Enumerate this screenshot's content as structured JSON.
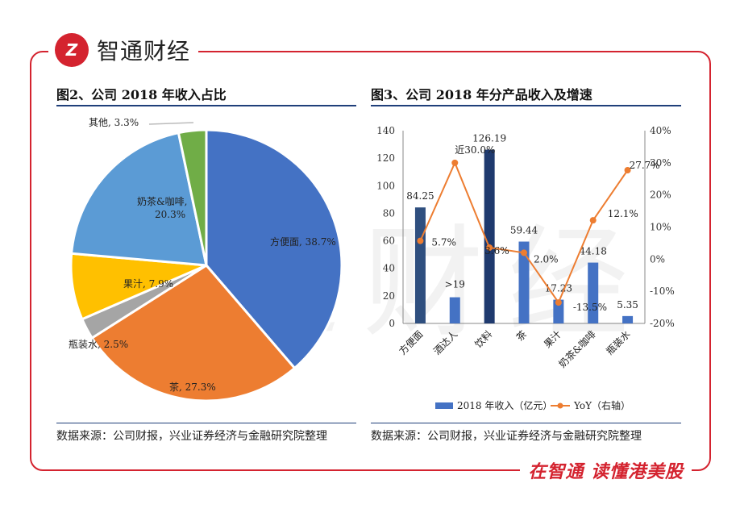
{
  "brand": {
    "logo_text": "智通财经",
    "slogan": "在智通 读懂港美股",
    "accent": "#d4232f",
    "watermark": "智通财经"
  },
  "left": {
    "title": "图2、公司 2018 年收入占比",
    "source": "数据来源：公司财报，兴业证券经济与金融研究院整理"
  },
  "right": {
    "title": "图3、公司 2018 年分产品收入及增速",
    "source": "数据来源：公司财报，兴业证券经济与金融研究院整理"
  },
  "chart_data": [
    {
      "type": "pie",
      "slices": [
        {
          "label": "方便面",
          "value": 38.7,
          "text": "方便面, 38.7%",
          "color": "#4472c4"
        },
        {
          "label": "茶",
          "value": 27.3,
          "text": "茶, 27.3%",
          "color": "#ed7d31"
        },
        {
          "label": "瓶装水",
          "value": 2.5,
          "text": "瓶装水, 2.5%",
          "color": "#a5a5a5"
        },
        {
          "label": "果汁",
          "value": 7.9,
          "text": "果汁, 7.9%",
          "color": "#ffc000"
        },
        {
          "label": "奶茶&咖啡",
          "value": 20.3,
          "text": "奶茶&咖啡,\n20.3%",
          "color": "#5b9bd5"
        },
        {
          "label": "其他",
          "value": 3.3,
          "text": "其他, 3.3%",
          "color": "#70ad47"
        }
      ]
    },
    {
      "type": "bar",
      "categories": [
        "方便面",
        "酒达人",
        "饮料",
        "茶",
        "果汁",
        "奶茶&咖啡",
        "瓶装水"
      ],
      "series": [
        {
          "name": "2018 年收入（亿元）",
          "type": "bar",
          "axis": "left",
          "values": [
            84.25,
            19,
            126.19,
            59.44,
            17.23,
            44.18,
            5.35
          ],
          "labels": [
            "84.25",
            ">19",
            "126.19",
            "59.44",
            "17.23",
            "44.18",
            "5.35"
          ],
          "colors": [
            "#2f4f7f",
            "#4472c4",
            "#1f3a6e",
            "#4472c4",
            "#4472c4",
            "#4472c4",
            "#4472c4"
          ]
        },
        {
          "name": "YoY（右轴）",
          "type": "line",
          "axis": "right",
          "values": [
            5.7,
            30.0,
            3.6,
            2.0,
            -13.5,
            12.1,
            27.7
          ],
          "labels": [
            "5.7%",
            "近30.0%",
            "3.6%",
            "2.0%",
            "-13.5%",
            "12.1%",
            "27.7%"
          ],
          "color": "#ed7d31"
        }
      ],
      "y_left": {
        "ylim": [
          0,
          140
        ],
        "ticks": [
          "0",
          "20",
          "40",
          "60",
          "80",
          "100",
          "120",
          "140"
        ]
      },
      "y_right": {
        "ylim": [
          -20,
          40
        ],
        "ticks": [
          "-20%",
          "-10%",
          "0%",
          "10%",
          "20%",
          "30%",
          "40%"
        ]
      },
      "legend_position": "bottom"
    }
  ]
}
